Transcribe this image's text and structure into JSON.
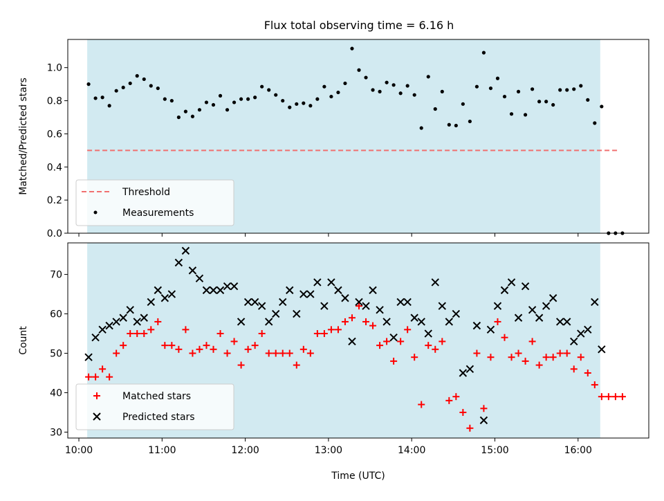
{
  "title": "Flux total observing time = 6.16 h",
  "chart_data": [
    {
      "type": "scatter",
      "ylabel": "Matched/Predicted stars",
      "xlim": [
        "09:52",
        "16:51"
      ],
      "ylim": [
        0,
        1.17
      ],
      "yticks": [
        "0.0",
        "0.2",
        "0.4",
        "0.6",
        "0.8",
        "1.0"
      ],
      "shaded_interval": [
        "10:06",
        "16:16"
      ],
      "shade_color": "#add8e6",
      "threshold": {
        "name": "Threshold",
        "value": 0.5,
        "x": [
          "10:06",
          "16:29"
        ],
        "color": "#f07070"
      },
      "series": [
        {
          "name": "Measurements",
          "color": "#000000",
          "x": [
            "10:07",
            "10:12",
            "10:17",
            "10:22",
            "10:27",
            "10:32",
            "10:37",
            "10:42",
            "10:47",
            "10:52",
            "10:57",
            "11:02",
            "11:07",
            "11:12",
            "11:17",
            "11:22",
            "11:27",
            "11:32",
            "11:37",
            "11:42",
            "11:47",
            "11:52",
            "11:57",
            "12:02",
            "12:07",
            "12:12",
            "12:17",
            "12:22",
            "12:27",
            "12:32",
            "12:37",
            "12:42",
            "12:47",
            "12:52",
            "12:57",
            "13:02",
            "13:07",
            "13:12",
            "13:17",
            "13:22",
            "13:27",
            "13:32",
            "13:37",
            "13:42",
            "13:47",
            "13:52",
            "13:57",
            "14:02",
            "14:07",
            "14:12",
            "14:17",
            "14:22",
            "14:27",
            "14:32",
            "14:37",
            "14:42",
            "14:47",
            "14:52",
            "14:57",
            "15:02",
            "15:07",
            "15:12",
            "15:17",
            "15:22",
            "15:27",
            "15:32",
            "15:37",
            "15:42",
            "15:47",
            "15:52",
            "15:57",
            "16:02",
            "16:07",
            "16:12",
            "16:17",
            "16:22",
            "16:27",
            "16:32"
          ],
          "y": [
            0.9,
            0.815,
            0.82,
            0.77,
            0.86,
            0.88,
            0.905,
            0.95,
            0.93,
            0.89,
            0.875,
            0.81,
            0.8,
            0.7,
            0.735,
            0.705,
            0.745,
            0.79,
            0.775,
            0.83,
            0.745,
            0.79,
            0.81,
            0.81,
            0.82,
            0.885,
            0.865,
            0.835,
            0.8,
            0.76,
            0.78,
            0.785,
            0.77,
            0.81,
            0.885,
            0.825,
            0.85,
            0.905,
            1.115,
            0.985,
            0.94,
            0.865,
            0.855,
            0.91,
            0.895,
            0.845,
            0.89,
            0.835,
            0.635,
            0.945,
            0.75,
            0.855,
            0.655,
            0.65,
            0.78,
            0.675,
            0.885,
            1.09,
            0.875,
            0.935,
            0.825,
            0.72,
            0.855,
            0.715,
            0.87,
            0.795,
            0.795,
            0.775,
            0.865,
            0.865,
            0.87,
            0.89,
            0.805,
            0.665,
            0.765,
            0,
            0,
            0
          ]
        }
      ],
      "legend": "lower-left"
    },
    {
      "type": "scatter",
      "xlabel": "Time (UTC)",
      "ylabel": "Count",
      "xlim": [
        "09:52",
        "16:51"
      ],
      "ylim": [
        28.5,
        78
      ],
      "yticks": [
        "30",
        "40",
        "50",
        "60",
        "70"
      ],
      "xticks": [
        "10:00",
        "11:00",
        "12:00",
        "13:00",
        "14:00",
        "15:00",
        "16:00"
      ],
      "shaded_interval": [
        "10:06",
        "16:16"
      ],
      "series": [
        {
          "name": "Matched stars",
          "marker": "plus",
          "color": "#ff0000",
          "x": [
            "10:07",
            "10:12",
            "10:17",
            "10:22",
            "10:27",
            "10:32",
            "10:37",
            "10:42",
            "10:47",
            "10:52",
            "10:57",
            "11:02",
            "11:07",
            "11:12",
            "11:17",
            "11:22",
            "11:27",
            "11:32",
            "11:37",
            "11:42",
            "11:47",
            "11:52",
            "11:57",
            "12:02",
            "12:07",
            "12:12",
            "12:17",
            "12:22",
            "12:27",
            "12:32",
            "12:37",
            "12:42",
            "12:47",
            "12:52",
            "12:57",
            "13:02",
            "13:07",
            "13:12",
            "13:17",
            "13:22",
            "13:27",
            "13:32",
            "13:37",
            "13:42",
            "13:47",
            "13:52",
            "13:57",
            "14:02",
            "14:07",
            "14:12",
            "14:17",
            "14:22",
            "14:27",
            "14:32",
            "14:37",
            "14:42",
            "14:47",
            "14:52",
            "14:57",
            "15:02",
            "15:07",
            "15:12",
            "15:17",
            "15:22",
            "15:27",
            "15:32",
            "15:37",
            "15:42",
            "15:47",
            "15:52",
            "15:57",
            "16:02",
            "16:07",
            "16:12",
            "16:17",
            "16:22",
            "16:27",
            "16:32"
          ],
          "y": [
            44,
            44,
            46,
            44,
            50,
            52,
            55,
            55,
            55,
            56,
            58,
            52,
            52,
            51,
            56,
            50,
            51,
            52,
            51,
            55,
            50,
            53,
            47,
            51,
            52,
            55,
            50,
            50,
            50,
            50,
            47,
            51,
            50,
            55,
            55,
            56,
            56,
            58,
            59,
            62,
            58,
            57,
            52,
            53,
            48,
            53,
            56,
            49,
            37,
            52,
            51,
            53,
            38,
            39,
            35,
            31,
            50,
            36,
            49,
            58,
            54,
            49,
            50,
            48,
            53,
            47,
            49,
            49,
            50,
            50,
            46,
            49,
            45,
            42,
            39,
            39,
            39,
            39
          ]
        },
        {
          "name": "Predicted stars",
          "marker": "x",
          "color": "#000000",
          "x": [
            "10:07",
            "10:12",
            "10:17",
            "10:22",
            "10:27",
            "10:32",
            "10:37",
            "10:42",
            "10:47",
            "10:52",
            "10:57",
            "11:02",
            "11:07",
            "11:12",
            "11:17",
            "11:22",
            "11:27",
            "11:32",
            "11:37",
            "11:42",
            "11:47",
            "11:52",
            "11:57",
            "12:02",
            "12:07",
            "12:12",
            "12:17",
            "12:22",
            "12:27",
            "12:32",
            "12:37",
            "12:42",
            "12:47",
            "12:52",
            "12:57",
            "13:02",
            "13:07",
            "13:12",
            "13:17",
            "13:22",
            "13:27",
            "13:32",
            "13:37",
            "13:42",
            "13:47",
            "13:52",
            "13:57",
            "14:02",
            "14:07",
            "14:12",
            "14:17",
            "14:22",
            "14:27",
            "14:32",
            "14:37",
            "14:42",
            "14:47",
            "14:52",
            "14:57",
            "15:02",
            "15:07",
            "15:12",
            "15:17",
            "15:22",
            "15:27",
            "15:32",
            "15:37",
            "15:42",
            "15:47",
            "15:52",
            "15:57",
            "16:02",
            "16:07",
            "16:12",
            "16:17"
          ],
          "y": [
            49,
            54,
            56,
            57,
            58,
            59,
            61,
            58,
            59,
            63,
            66,
            64,
            65,
            73,
            76,
            71,
            69,
            66,
            66,
            66,
            67,
            67,
            58,
            63,
            63,
            62,
            58,
            60,
            63,
            66,
            60,
            65,
            65,
            68,
            62,
            68,
            66,
            64,
            53,
            63,
            62,
            66,
            61,
            58,
            54,
            63,
            63,
            59,
            58,
            55,
            68,
            62,
            58,
            60,
            45,
            46,
            57,
            33,
            56,
            62,
            66,
            68,
            59,
            67,
            61,
            59,
            62,
            64,
            58,
            58,
            53,
            55,
            56,
            63,
            51
          ]
        }
      ],
      "legend": "lower-left"
    }
  ]
}
